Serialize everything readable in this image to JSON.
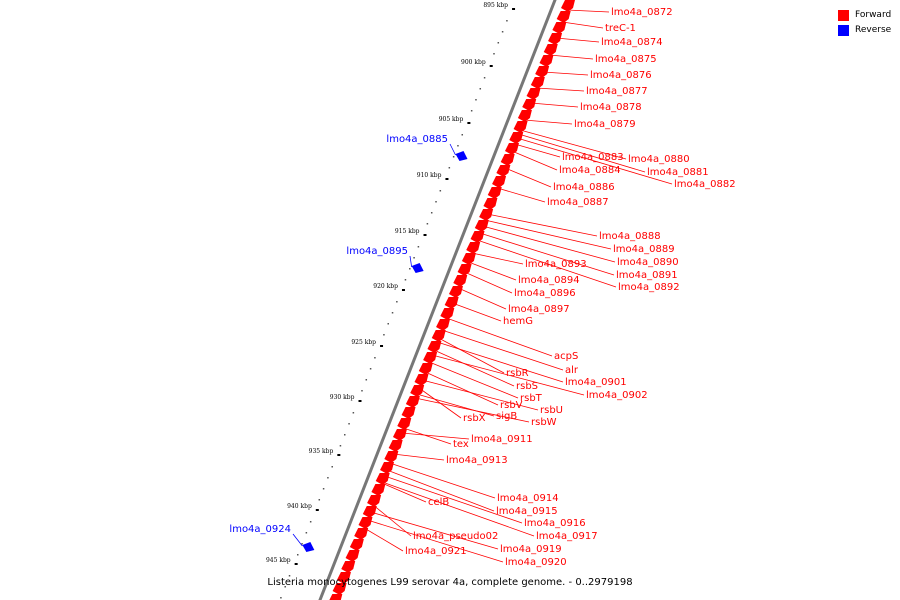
{
  "caption": "Listeria monocytogenes L99 serovar 4a, complete genome. - 0..2979198",
  "legend": [
    {
      "label": "Forward",
      "color": "#ff0000"
    },
    {
      "label": "Reverse",
      "color": "#0000ff"
    }
  ],
  "colors": {
    "forward": "#ff0000",
    "reverse": "#0000ff",
    "backbone": "#777777"
  },
  "ticks": [
    "895 kbp",
    "900 kbp",
    "905 kbp",
    "910 kbp",
    "915 kbp",
    "920 kbp",
    "925 kbp",
    "930 kbp",
    "935 kbp",
    "940 kbp",
    "945 kbp"
  ],
  "forward_genes": [
    "lmo4a_0872",
    "treC-1",
    "lmo4a_0874",
    "lmo4a_0875",
    "lmo4a_0876",
    "lmo4a_0877",
    "lmo4a_0878",
    "lmo4a_0879",
    "lmo4a_0880",
    "lmo4a_0881",
    "lmo4a_0882",
    "lmo4a_0883",
    "lmo4a_0884",
    "lmo4a_0886",
    "lmo4a_0887",
    "lmo4a_0888",
    "lmo4a_0889",
    "lmo4a_0890",
    "lmo4a_0891",
    "lmo4a_0892",
    "lmo4a_0893",
    "lmo4a_0894",
    "lmo4a_0896",
    "lmo4a_0897",
    "hemG",
    "acpS",
    "alr",
    "rsbR",
    "lmo4a_0901",
    "rsbS",
    "lmo4a_0902",
    "rsbT",
    "rsbV",
    "rsbU",
    "rsbX",
    "sigB",
    "rsbW",
    "tex",
    "lmo4a_0911",
    "lmo4a_0913",
    "lmo4a_0914",
    "celB",
    "lmo4a_0915",
    "lmo4a_0916",
    "lmo4a_0917",
    "lmo4a_pseudo02",
    "lmo4a_0919",
    "lmo4a_0921",
    "lmo4a_0920"
  ],
  "reverse_genes": [
    "lmo4a_0885",
    "lmo4a_0895",
    "lmo4a_0924"
  ]
}
